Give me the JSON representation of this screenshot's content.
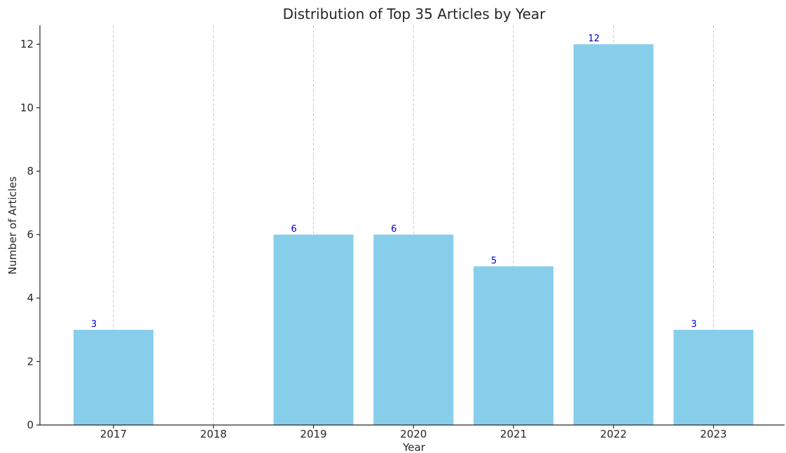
{
  "chart_data": {
    "type": "bar",
    "title": "Distribution of Top 35 Articles by Year",
    "xlabel": "Year",
    "ylabel": "Number of Articles",
    "categories": [
      "2017",
      "2018",
      "2019",
      "2020",
      "2021",
      "2022",
      "2023"
    ],
    "values": [
      3,
      0,
      6,
      6,
      5,
      12,
      3
    ],
    "data_labels": [
      "3",
      "",
      "6",
      "6",
      "5",
      "12",
      "3"
    ],
    "ylim": [
      0,
      12.6
    ],
    "yticks": [
      0,
      2,
      4,
      6,
      8,
      10,
      12
    ],
    "grid": "vertical dashed",
    "bar_color": "#87ceeb",
    "label_color": "#0000cd"
  }
}
